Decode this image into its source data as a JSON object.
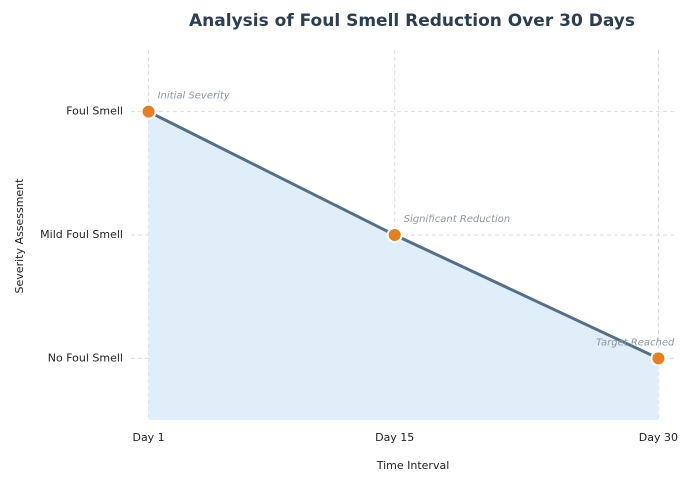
{
  "chart_data": {
    "type": "area-line",
    "title": "Analysis of Foul Smell Reduction Over 30 Days",
    "x_label": "Time Interval",
    "y_label": "Severity Assessment",
    "x": [
      1,
      15,
      30
    ],
    "series": [
      {
        "name": "Severity",
        "color": "#566e87",
        "marker_color": "#e67e22",
        "fill_color": "#dfeef9",
        "values": [
          2,
          1,
          0
        ]
      }
    ],
    "annotations": [
      "Initial Severity",
      "Significant Reduction",
      "Target Reached"
    ],
    "xlim": [
      0,
      31
    ],
    "xticks": [
      {
        "value": 1,
        "label": "Day 1"
      },
      {
        "value": 15,
        "label": "Day 15"
      },
      {
        "value": 30,
        "label": "Day 30"
      }
    ],
    "ylim": [
      -0.5,
      2.5
    ],
    "yticks": [
      {
        "value": 0,
        "label": "No Foul Smell"
      },
      {
        "value": 1,
        "label": "Mild Foul Smell"
      },
      {
        "value": 2,
        "label": "Foul Smell"
      }
    ],
    "grid": true
  }
}
